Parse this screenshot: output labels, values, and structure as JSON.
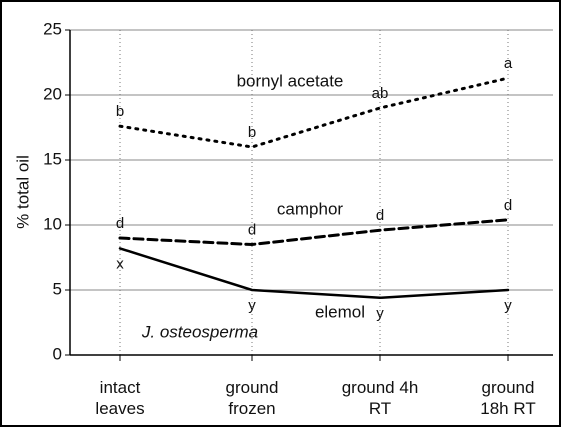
{
  "chart_data": {
    "type": "line",
    "ylabel": "% total oil",
    "annotation": "J. osteosperma",
    "categories": [
      "intact leaves",
      "ground frozen",
      "ground 4h RT",
      "ground 18h RT"
    ],
    "ylim": [
      0,
      25
    ],
    "yticks": [
      0,
      5,
      10,
      15,
      20,
      25
    ],
    "grid": true,
    "series": [
      {
        "name": "bornyl acetate",
        "color": "#000000",
        "style": "dotted",
        "values": [
          17.6,
          16.0,
          19.0,
          21.3
        ],
        "letters": [
          "b",
          "b",
          "ab",
          "a"
        ],
        "letter_side": "above"
      },
      {
        "name": "camphor",
        "color": "#000000",
        "style": "dashed",
        "values": [
          9.0,
          8.5,
          9.6,
          10.4
        ],
        "letters": [
          "d",
          "d",
          "d",
          "d"
        ],
        "letter_side": "above"
      },
      {
        "name": "elemol",
        "color": "#000000",
        "style": "solid",
        "values": [
          8.2,
          5.0,
          4.4,
          5.0
        ],
        "letters": [
          "x",
          "y",
          "y",
          "y"
        ],
        "letter_side": "below"
      }
    ]
  }
}
